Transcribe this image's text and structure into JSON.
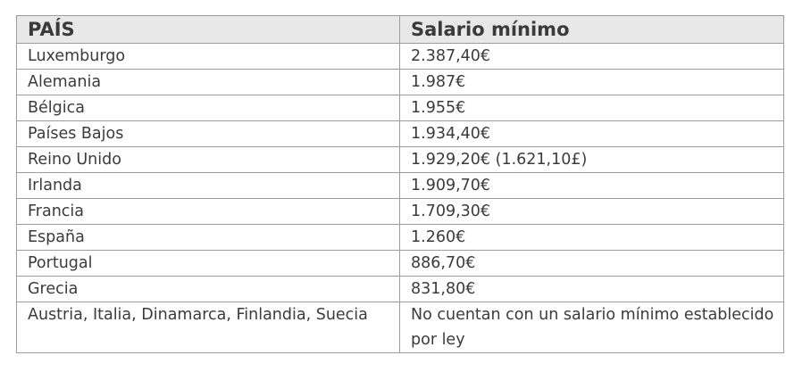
{
  "table": {
    "headers": [
      "PAÍS",
      "Salario mínimo"
    ],
    "rows": [
      [
        "Luxemburgo",
        "2.387,40€"
      ],
      [
        "Alemania",
        "1.987€"
      ],
      [
        "Bélgica",
        "1.955€"
      ],
      [
        "Países Bajos",
        "1.934,40€"
      ],
      [
        "Reino Unido",
        "1.929,20€ (1.621,10£)"
      ],
      [
        "Irlanda",
        "1.909,70€"
      ],
      [
        "Francia",
        "1.709,30€"
      ],
      [
        "España",
        "1.260€"
      ],
      [
        "Portugal",
        "886,70€"
      ],
      [
        "Grecia",
        "831,80€"
      ],
      [
        "Austria, Italia, Dinamarca, Finlandia, Suecia",
        "No cuentan con un salario mínimo establecido por ley"
      ]
    ]
  },
  "colors": {
    "header_background": "#e8e8e8",
    "border": "#9c9c9c",
    "text": "#3b3b3b"
  }
}
